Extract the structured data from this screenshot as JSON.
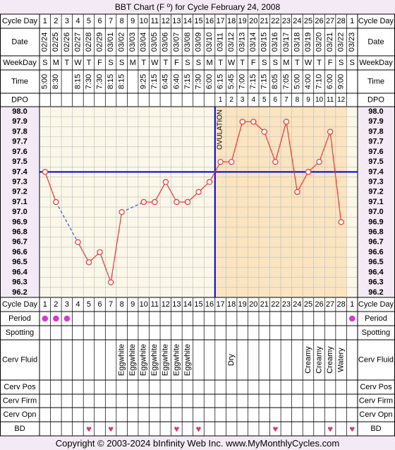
{
  "title": "BBT Chart (F º) for Cycle February 24, 2008",
  "footer": "Copyright © 2003-2024 bInfinity Web Inc.    www.MyMonthlyCycles.com",
  "labels": {
    "cycle_day": "Cycle Day",
    "date": "Date",
    "weekday": "WeekDay",
    "time": "Time",
    "dpo": "DPO",
    "period": "Period",
    "spotting": "Spotting",
    "cerv_fluid": "Cerv Fluid",
    "cerv_pos": "Cerv Pos",
    "cerv_firm": "Cerv Firm",
    "cerv_opn": "Cerv Opn",
    "bd": "BD",
    "ovulation": "OVULATION"
  },
  "colors": {
    "page_bg": "#f3eaf5",
    "follicular_bg": "#fbf8e9",
    "luteal_bg": "#fae5c0",
    "temp_line": "#ff3333",
    "coverline": "#0000cc",
    "period_dot": "#dd33dd",
    "heart": "#dd3377"
  },
  "columns": {
    "cycle_days": [
      "1",
      "2",
      "3",
      "4",
      "5",
      "6",
      "7",
      "8",
      "9",
      "10",
      "11",
      "12",
      "13",
      "14",
      "15",
      "16",
      "17",
      "18",
      "19",
      "20",
      "21",
      "22",
      "23",
      "24",
      "25",
      "26",
      "27",
      "28",
      "1"
    ],
    "dates": [
      "02/24",
      "02/25",
      "02/26",
      "02/27",
      "02/28",
      "02/29",
      "03/01",
      "03/02",
      "03/03",
      "03/04",
      "03/05",
      "03/06",
      "03/07",
      "03/08",
      "03/09",
      "03/10",
      "03/11",
      "03/12",
      "03/13",
      "03/14",
      "03/15",
      "03/16",
      "03/17",
      "03/18",
      "03/19",
      "03/20",
      "03/21",
      "03/22",
      "03/23"
    ],
    "weekdays": [
      "S",
      "M",
      "T",
      "W",
      "T",
      "F",
      "S",
      "S",
      "M",
      "T",
      "W",
      "T",
      "F",
      "S",
      "S",
      "M",
      "T",
      "W",
      "T",
      "F",
      "S",
      "S",
      "M",
      "T",
      "W",
      "T",
      "F",
      "S",
      "S"
    ],
    "times": [
      "5:00",
      "8:30",
      "",
      "8:15",
      "7:30",
      "7:30",
      "8:15",
      "8:15",
      "",
      "9:25",
      "7:15",
      "6:45",
      "6:40",
      "7:15",
      "7:30",
      "6:00",
      "6:15",
      "5:45",
      "7:00",
      "7:15",
      "7:15",
      "8:05",
      "7:05",
      "5:00",
      "4:00",
      "7:10",
      "6:00",
      "9:00",
      ""
    ],
    "dpo": [
      "",
      "",
      "",
      "",
      "",
      "",
      "",
      "",
      "",
      "",
      "",
      "",
      "",
      "",
      "",
      "",
      "1",
      "2",
      "3",
      "4",
      "5",
      "6",
      "7",
      "8",
      "9",
      "10",
      "11",
      "12",
      ""
    ],
    "period": [
      true,
      true,
      true,
      false,
      false,
      false,
      false,
      false,
      false,
      false,
      false,
      false,
      false,
      false,
      false,
      false,
      false,
      false,
      false,
      false,
      false,
      false,
      false,
      false,
      false,
      false,
      false,
      false,
      true
    ],
    "spotting": [
      "",
      "",
      "",
      "",
      "",
      "",
      "",
      "",
      "",
      "",
      "",
      "",
      "",
      "",
      "",
      "",
      "",
      "",
      "",
      "",
      "",
      "",
      "",
      "",
      "",
      "",
      "",
      "",
      ""
    ],
    "cerv_fluid": [
      "",
      "",
      "",
      "",
      "",
      "",
      "",
      "Eggwhite",
      "Eggwhite",
      "Eggwhite",
      "Eggwhite",
      "Eggwhite",
      "Eggwhite",
      "Eggwhite",
      "",
      "",
      "",
      "Dry",
      "",
      "",
      "",
      "",
      "",
      "",
      "Creamy",
      "Creamy",
      "Creamy",
      "Watery",
      ""
    ],
    "bd": [
      false,
      false,
      false,
      false,
      true,
      false,
      true,
      false,
      false,
      false,
      false,
      false,
      true,
      false,
      true,
      false,
      false,
      false,
      false,
      false,
      false,
      true,
      false,
      false,
      false,
      false,
      true,
      false,
      true
    ]
  },
  "chart_data": {
    "type": "line",
    "y_axis_ticks": [
      "98.0",
      "97.9",
      "97.8",
      "97.7",
      "97.6",
      "97.5",
      "97.4",
      "97.3",
      "97.2",
      "97.1",
      "97.0",
      "96.9",
      "96.8",
      "96.7",
      "96.6",
      "96.5",
      "96.4",
      "96.3",
      "96.2"
    ],
    "ylim": [
      96.2,
      98.0
    ],
    "x": [
      "1",
      "2",
      "3",
      "4",
      "5",
      "6",
      "7",
      "8",
      "9",
      "10",
      "11",
      "12",
      "13",
      "14",
      "15",
      "16",
      "17",
      "18",
      "19",
      "20",
      "21",
      "22",
      "23",
      "24",
      "25",
      "26",
      "27",
      "28",
      "1"
    ],
    "temperatures": [
      97.4,
      97.1,
      null,
      96.7,
      96.5,
      96.6,
      96.3,
      97.0,
      null,
      97.1,
      97.1,
      97.3,
      97.1,
      97.1,
      97.2,
      97.3,
      97.5,
      97.5,
      97.9,
      97.9,
      97.8,
      97.5,
      97.9,
      97.2,
      97.4,
      97.5,
      97.8,
      96.9,
      null
    ],
    "coverline": 97.4,
    "ovulation_day": 16
  }
}
